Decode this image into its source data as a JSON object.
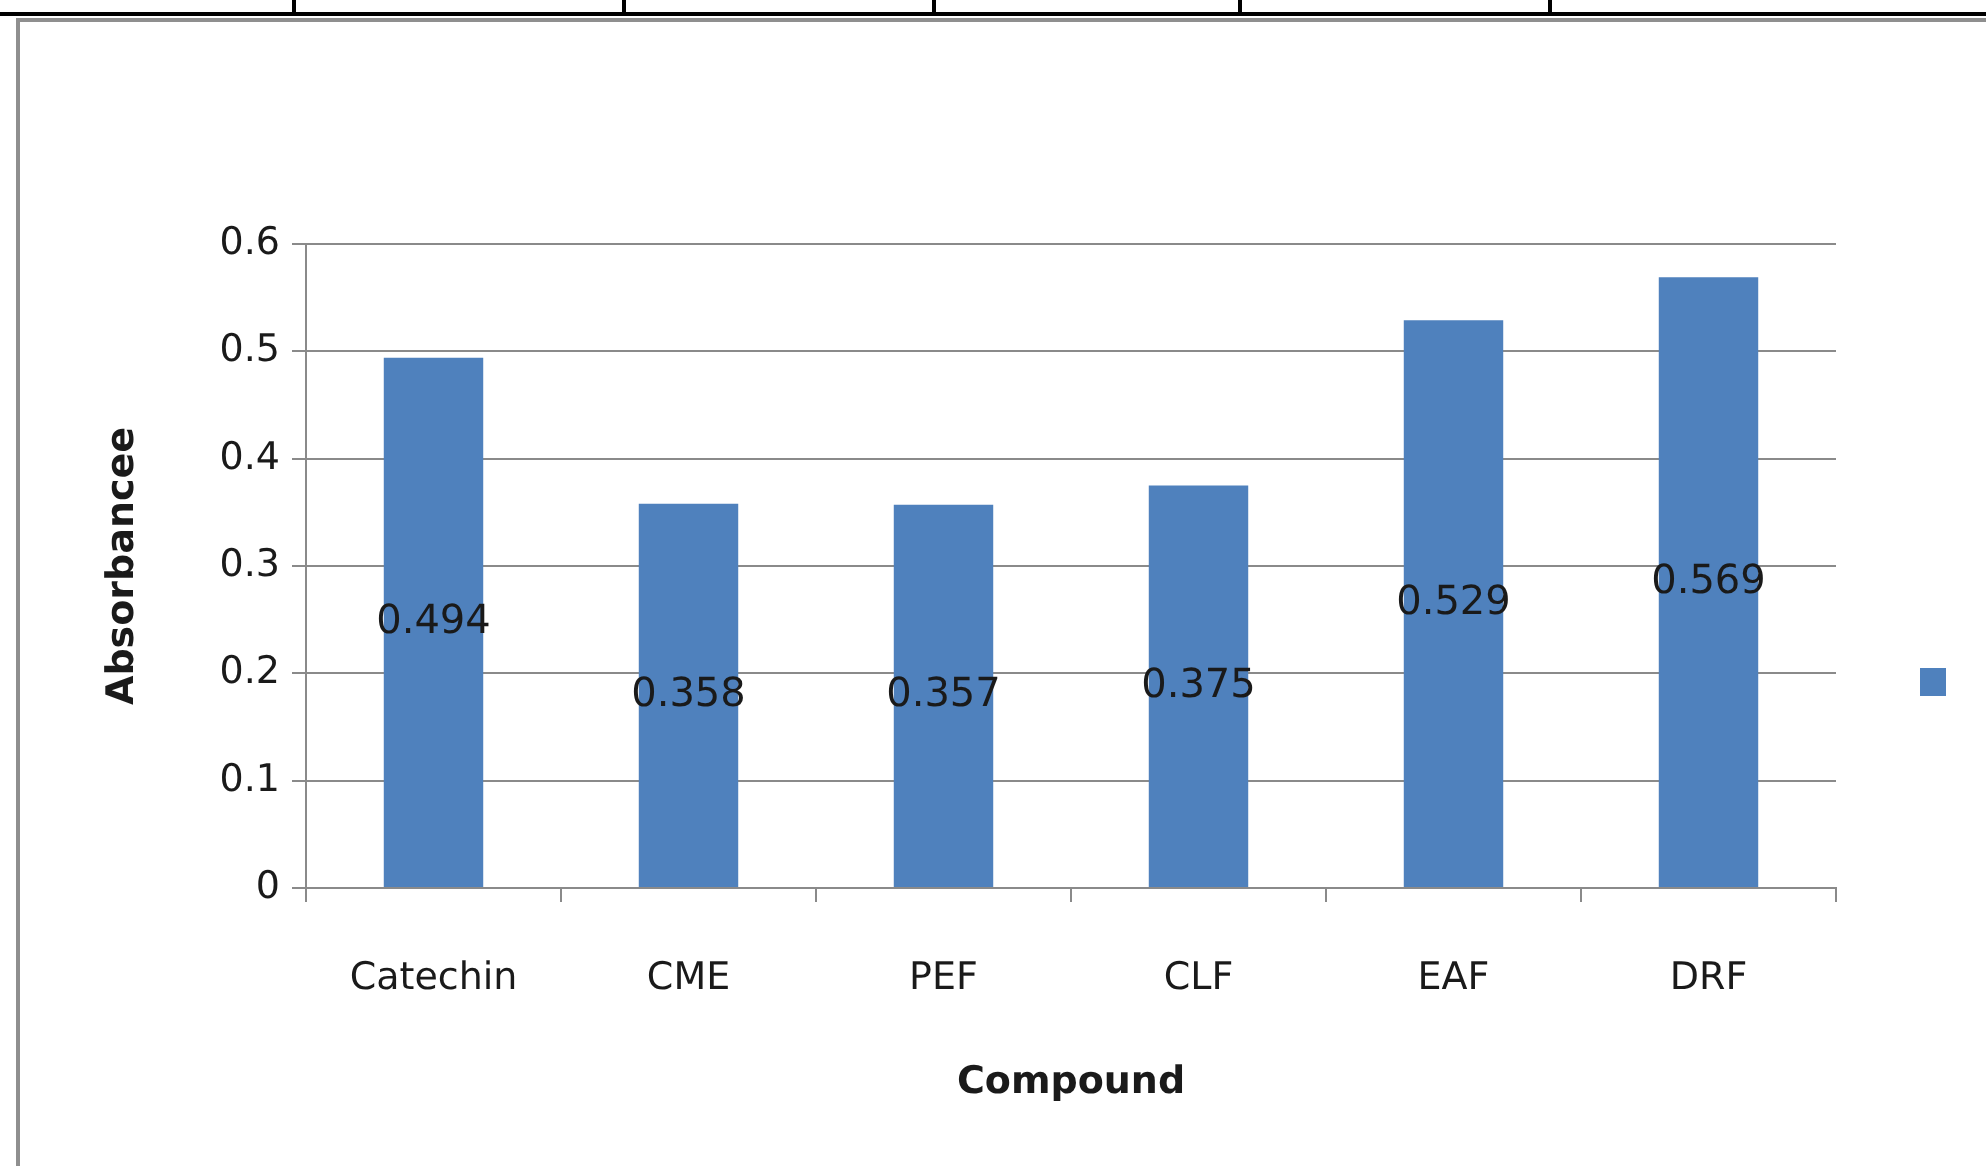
{
  "chart_data": {
    "type": "bar",
    "xlabel": "Compound",
    "ylabel": "Absorbancee",
    "categories": [
      "Catechin",
      "CME",
      "PEF",
      "CLF",
      "EAF",
      "DRF"
    ],
    "series": [
      {
        "color": "#4f81bd",
        "values": [
          0.494,
          0.358,
          0.357,
          0.375,
          0.529,
          0.569
        ]
      }
    ],
    "ylim": [
      0,
      0.6
    ],
    "yticks": [
      0,
      0.1,
      0.2,
      0.3,
      0.4,
      0.5,
      0.6
    ],
    "grid": "y",
    "data_labels": true
  }
}
